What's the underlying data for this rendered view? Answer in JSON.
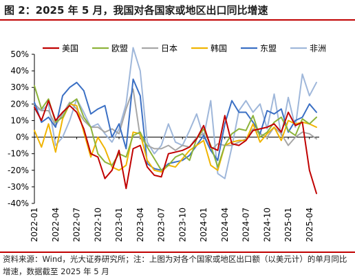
{
  "title": "图 2：2025 年 5 月，我国对各国家或地区出口同比增速",
  "source": "资料来源：Wind，光大证券研究所；注：上图为对各个国家或地区出口额（以美元计）的单月同比增速，数据截至 2025 年 5 月",
  "colors": {
    "rule": "#c00000",
    "美国": "#c00000",
    "欧盟": "#8db33a",
    "日本": "#a6a6a6",
    "韩国": "#f0b400",
    "东盟": "#3a6fc4",
    "非洲": "#9fb7da"
  },
  "chart_data": {
    "type": "line",
    "title": "",
    "xlabel": "",
    "ylabel": "",
    "unit": "%",
    "ylim": [
      -40,
      50
    ],
    "yticks": [
      -40,
      -30,
      -20,
      -10,
      0,
      10,
      20,
      30,
      40,
      50
    ],
    "ytick_labels": [
      "-40%",
      "-30%",
      "-20%",
      "-10%",
      "0%",
      "10%",
      "20%",
      "30%",
      "40%",
      "50%"
    ],
    "xtick_labels": [
      "2022-01",
      "2022-04",
      "2022-07",
      "2022-10",
      "2023-01",
      "2023-04",
      "2023-07",
      "2023-10",
      "2024-01",
      "2024-04",
      "2024-07",
      "2024-10",
      "2025-01",
      "2025-04"
    ],
    "grid": false,
    "legend_position": "top",
    "x": [
      "2022-01",
      "2022-02",
      "2022-03",
      "2022-04",
      "2022-05",
      "2022-06",
      "2022-07",
      "2022-08",
      "2022-09",
      "2022-10",
      "2022-11",
      "2022-12",
      "2023-01",
      "2023-02",
      "2023-03",
      "2023-04",
      "2023-05",
      "2023-06",
      "2023-07",
      "2023-08",
      "2023-09",
      "2023-10",
      "2023-11",
      "2023-12",
      "2024-01",
      "2024-02",
      "2024-03",
      "2024-04",
      "2024-05",
      "2024-06",
      "2024-07",
      "2024-08",
      "2024-09",
      "2024-10",
      "2024-11",
      "2024-12",
      "2025-01",
      "2025-02",
      "2025-03",
      "2025-04",
      "2025-05"
    ],
    "series": [
      {
        "name": "美国",
        "values": [
          18,
          10,
          22,
          10,
          15,
          19,
          15,
          5,
          -10,
          -12,
          -25,
          -20,
          -8,
          -31,
          -7,
          -5,
          -18,
          -23,
          -24,
          -10,
          -9,
          -8,
          -6,
          -1,
          7,
          -6,
          -8,
          13,
          -4,
          -5,
          -2,
          4,
          5,
          6,
          8,
          3,
          15,
          7,
          9,
          -20,
          -34
        ]
      },
      {
        "name": "欧盟",
        "values": [
          31,
          17,
          23,
          9,
          12,
          20,
          23,
          12,
          6,
          -10,
          -15,
          -17,
          -10,
          -12,
          1,
          3,
          -6,
          -13,
          -20,
          -17,
          -12,
          -10,
          -14,
          -1,
          5,
          -5,
          -18,
          -5,
          2,
          5,
          4,
          13,
          0,
          3,
          9,
          12,
          4,
          1,
          11,
          8,
          12
        ]
      },
      {
        "name": "日本",
        "values": [
          20,
          16,
          16,
          7,
          14,
          21,
          17,
          10,
          6,
          6,
          3,
          5,
          2,
          17,
          29,
          0,
          -5,
          -7,
          -7,
          -5,
          -8,
          -5,
          -6,
          0,
          2,
          -8,
          -4,
          -5,
          -5,
          -3,
          -1,
          5,
          2,
          0,
          6,
          2,
          -5,
          0,
          3,
          2,
          -1
        ]
      },
      {
        "name": "韩国",
        "values": [
          4,
          -6,
          8,
          -9,
          11,
          20,
          19,
          3,
          -12,
          0,
          -7,
          -18,
          -20,
          -17,
          3,
          2,
          -14,
          -20,
          -21,
          -17,
          -18,
          -13,
          -8,
          -5,
          -2,
          -17,
          -20,
          -5,
          -3,
          -2,
          -2,
          8,
          -3,
          2,
          6,
          -2,
          10,
          8,
          9,
          8,
          6
        ]
      },
      {
        "name": "东盟",
        "values": [
          21,
          9,
          12,
          6,
          25,
          30,
          33,
          28,
          14,
          17,
          19,
          0,
          8,
          -7,
          35,
          25,
          -16,
          -19,
          -20,
          -16,
          -15,
          -14,
          -11,
          -5,
          1,
          -8,
          -14,
          8,
          22,
          15,
          15,
          9,
          2,
          16,
          14,
          17,
          3,
          10,
          12,
          20,
          15
        ]
      },
      {
        "name": "非洲",
        "values": [
          18,
          16,
          20,
          -5,
          0,
          10,
          23,
          15,
          6,
          8,
          2,
          -3,
          5,
          20,
          54,
          40,
          -3,
          -10,
          -5,
          8,
          -3,
          -5,
          4,
          14,
          0,
          22,
          -22,
          -25,
          -6,
          16,
          22,
          15,
          20,
          5,
          26,
          1,
          24,
          6,
          38,
          25,
          33
        ]
      }
    ]
  }
}
